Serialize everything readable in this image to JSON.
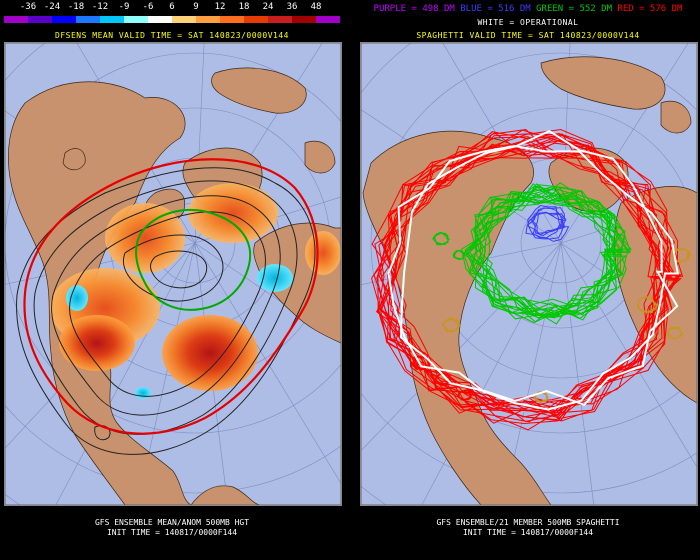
{
  "left": {
    "colorbar": {
      "ticks": [
        "-36",
        "-24",
        "-18",
        "-12",
        "-9",
        "-6",
        "6",
        "9",
        "12",
        "18",
        "24",
        "36",
        "48"
      ],
      "swatches": [
        "#a000c8",
        "#5a00c8",
        "#0000ff",
        "#1e78ff",
        "#00c8ff",
        "#90ffff",
        "#ffffff",
        "#ffd27a",
        "#ffa040",
        "#ff6e1e",
        "#e63c00",
        "#c81e1e",
        "#a00000",
        "#a000c8"
      ]
    },
    "valid_line": "DFSENS MEAN VALID TIME = SAT 140823/0000V144",
    "footer_line1": "GFS ENSEMBLE MEAN/ANOM 500MB HGT",
    "footer_line2": "INIT TIME = 140817/0000F144"
  },
  "right": {
    "legend": {
      "purple": "PURPLE = 498 DM",
      "blue": "BLUE = 516 DM",
      "green": "GREEN = 552 DM",
      "red": "RED = 576 DM",
      "white": "WHITE = OPERATIONAL"
    },
    "colors": {
      "purple": "#c000ff",
      "blue": "#3c3cff",
      "green": "#00c800",
      "red": "#ff0000",
      "white": "#ffffff",
      "gold": "#c8961e"
    },
    "valid_line": "SPAGHETTI VALID TIME = SAT 140823/0000V144",
    "footer_line1": "GFS ENSEMBLE/21 MEMBER 500MB SPAGHETTI",
    "footer_line2": "INIT TIME = 140817/0000F144"
  }
}
